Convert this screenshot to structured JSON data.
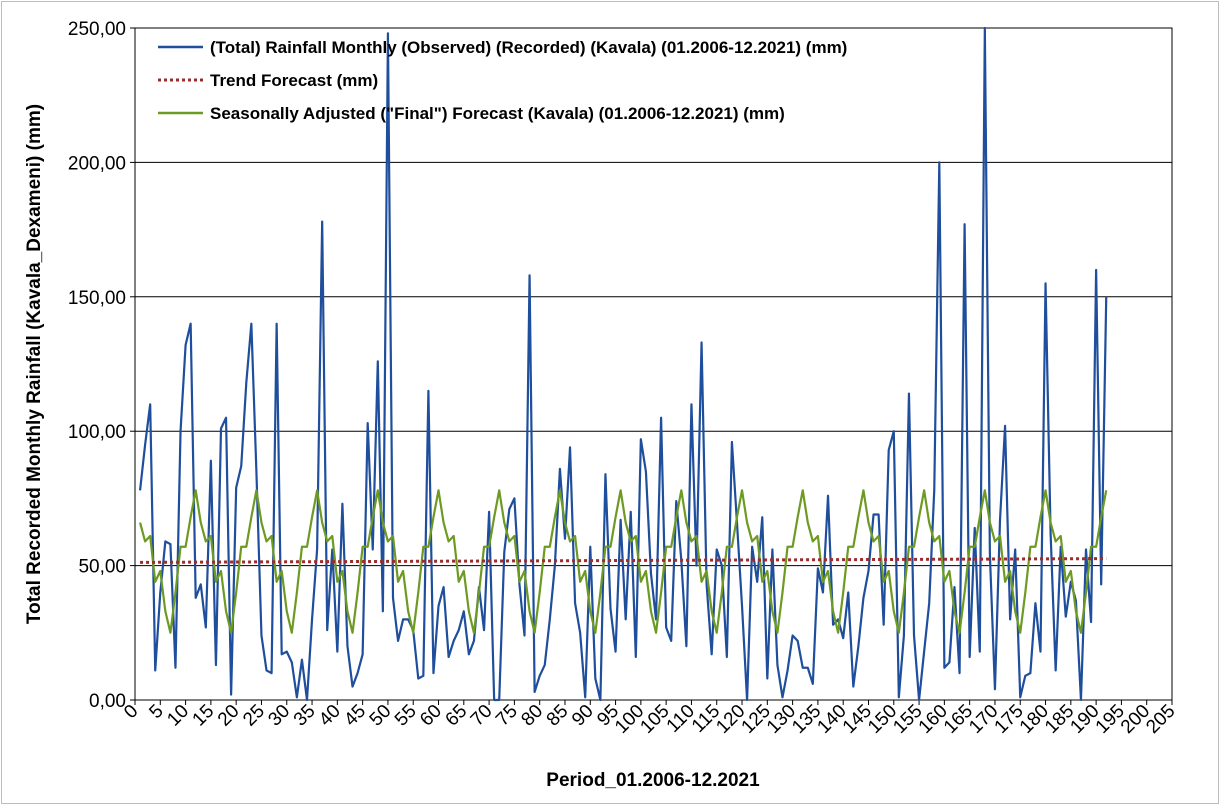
{
  "chart_data": {
    "type": "line",
    "title": "",
    "xlabel": "Period_01.2006-12.2021",
    "ylabel": "Total Recorded Monthly Rainfall (Kavala_Dexameni) (mm)",
    "xlim": [
      0,
      205
    ],
    "ylim": [
      0,
      250
    ],
    "x_ticks": [
      "0",
      "5",
      "10",
      "15",
      "20",
      "25",
      "30",
      "35",
      "40",
      "45",
      "50",
      "55",
      "60",
      "65",
      "70",
      "75",
      "80",
      "85",
      "90",
      "95",
      "100",
      "105",
      "110",
      "115",
      "120",
      "125",
      "130",
      "135",
      "140",
      "145",
      "150",
      "155",
      "160",
      "165",
      "170",
      "175",
      "180",
      "185",
      "190",
      "195",
      "200",
      "205"
    ],
    "y_ticks": [
      "0,00",
      "50,00",
      "100,00",
      "150,00",
      "200,00",
      "250,00"
    ],
    "y_tick_values": [
      0,
      50,
      100,
      150,
      200,
      250
    ],
    "x_tick_values": [
      0,
      5,
      10,
      15,
      20,
      25,
      30,
      35,
      40,
      45,
      50,
      55,
      60,
      65,
      70,
      75,
      80,
      85,
      90,
      95,
      100,
      105,
      110,
      115,
      120,
      125,
      130,
      135,
      140,
      145,
      150,
      155,
      160,
      165,
      170,
      175,
      180,
      185,
      190,
      195,
      200,
      205
    ],
    "grid": "horizontal",
    "legend_position": "top-left",
    "series": [
      {
        "name": "(Total) Rainfall Monthly (Observed) (Recorded) (Kavala) (01.2006-12.2021) (mm)",
        "color": "#1f4e9c",
        "style": "solid",
        "values": [
          78,
          95,
          110,
          11,
          40,
          59,
          58,
          12,
          100,
          132,
          140,
          38,
          43,
          27,
          89,
          13,
          101,
          105,
          2,
          79,
          87,
          118,
          140,
          85,
          24,
          11,
          10,
          140,
          17,
          18,
          14,
          1,
          15,
          0,
          30,
          56,
          178,
          26,
          56,
          18,
          73,
          20,
          5,
          10,
          17,
          103,
          56,
          126,
          33,
          248,
          38,
          22,
          30,
          30,
          26,
          8,
          9,
          115,
          10,
          35,
          42,
          16,
          22,
          26,
          33,
          17,
          22,
          42,
          26,
          70,
          0,
          0,
          55,
          71,
          75,
          43,
          24,
          158,
          3,
          9,
          13,
          30,
          50,
          86,
          60,
          94,
          36,
          25,
          1,
          57,
          8,
          0,
          84,
          34,
          18,
          67,
          30,
          70,
          16,
          97,
          85,
          47,
          30,
          105,
          27,
          22,
          74,
          52,
          20,
          110,
          50,
          133,
          43,
          17,
          56,
          50,
          16,
          96,
          66,
          35,
          0,
          57,
          44,
          68,
          8,
          56,
          13,
          1,
          11,
          24,
          22,
          12,
          12,
          6,
          49,
          40,
          76,
          28,
          30,
          23,
          40,
          5,
          20,
          38,
          48,
          69,
          69,
          28,
          93,
          100,
          1,
          24,
          114,
          24,
          0,
          18,
          36,
          78,
          200,
          12,
          14,
          42,
          10,
          177,
          16,
          64,
          18,
          250,
          54,
          4,
          67,
          102,
          30,
          56,
          1,
          9,
          10,
          36,
          18,
          155,
          62,
          11,
          57,
          31,
          44,
          37,
          0,
          56,
          29,
          160,
          43,
          150
        ],
        "x_start": 1
      },
      {
        "name": "Trend Forecast (mm)",
        "color": "#9b2c2c",
        "style": "dotted",
        "x": [
          1,
          192
        ],
        "values": [
          51.2,
          52.6
        ]
      },
      {
        "name": "Seasonally Adjusted (\"Final\") Forecast (Kavala) (01.2006-12.2021) (mm)",
        "color": "#6d9a22",
        "style": "solid",
        "seasonal_pattern": [
          66,
          59,
          61,
          44,
          48,
          33,
          25,
          40,
          57,
          57,
          68,
          78
        ],
        "seasonal_repeats": 16,
        "x_start": 1
      }
    ]
  }
}
